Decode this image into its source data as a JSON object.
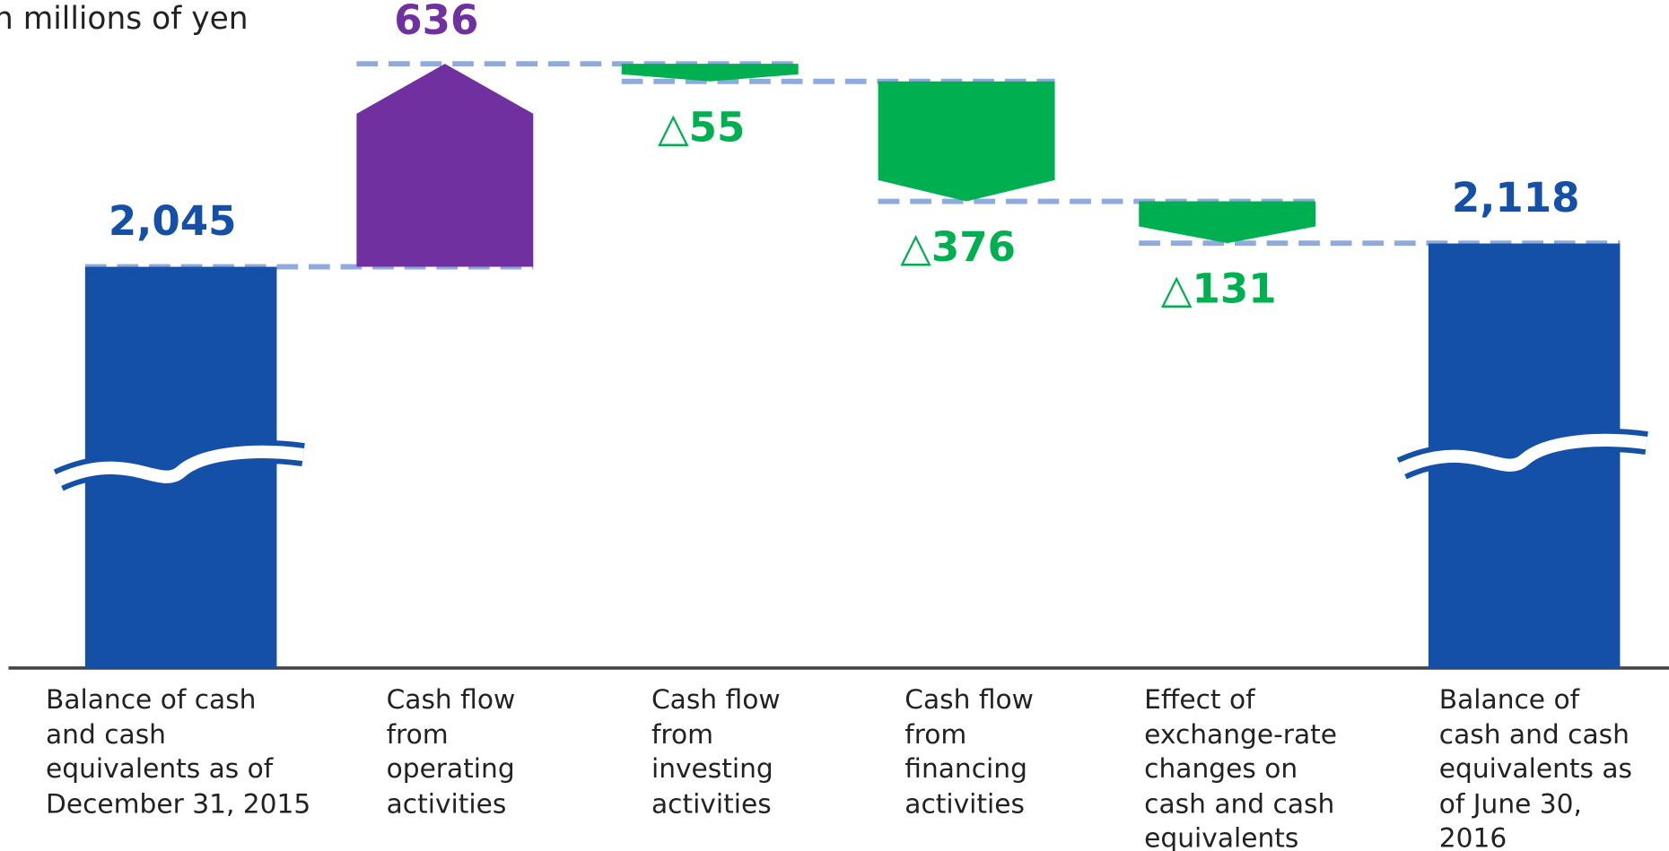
{
  "chart_data": {
    "type": "waterfall",
    "unit_label": "in millions of yen",
    "categories": [
      "Balance of cash\nand cash\nequivalents as of\nDecember 31, 2015",
      "Cash flow\nfrom\noperating\nactivities",
      "Cash flow\nfrom\ninvesting\nactivities",
      "Cash flow\nfrom\nfinancing\nactivities",
      "Effect of\nexchange-rate\nchanges on\ncash and cash\nequivalents",
      "Balance of\ncash and cash\nequivalents as\nof June 30,\n2016"
    ],
    "measure": [
      "absolute",
      "relative",
      "relative",
      "relative",
      "relative",
      "total"
    ],
    "values": [
      2045,
      636,
      -55,
      -376,
      -131,
      2118
    ],
    "value_labels": [
      "2,045",
      "636",
      "△55",
      "△376",
      "△131",
      "2,118"
    ],
    "colors": {
      "total": "#1450a8",
      "increase": "#7030a0",
      "decrease": "#00b050",
      "connector": "#8faadc"
    }
  }
}
